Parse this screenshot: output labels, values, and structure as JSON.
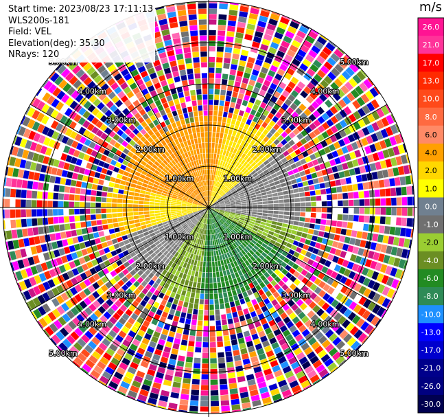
{
  "info": {
    "start_time": "Start time: 2023/08/23 17:11:13",
    "instrument": "WLS200s-181",
    "field": "Field: VEL",
    "elevation": "Elevation(deg): 35.30",
    "nrays": "NRays: 120"
  },
  "colorbar": {
    "title": "m/s",
    "ticks": [
      "26.0",
      "21.0",
      "17.0",
      "13.0",
      "10.0",
      "8.0",
      "6.0",
      "4.0",
      "2.0",
      "1.0",
      "0.0",
      "-1.0",
      "-2.0",
      "-4.0",
      "-6.0",
      "-8.0",
      "-10.0",
      "-13.0",
      "-17.0",
      "-21.0",
      "-26.0",
      "-30.0"
    ],
    "colors": [
      "#ff1493",
      "#ff3399",
      "#ff0000",
      "#ff2a00",
      "#ff4a1a",
      "#ff6a40",
      "#ff8a66",
      "#ffa000",
      "#ffd700",
      "#ffff00",
      "#708090",
      "#707070",
      "#9acd32",
      "#6b8e23",
      "#228b22",
      "#2e8b57",
      "#1e90ff",
      "#0000ff",
      "#0000cd",
      "#00008b",
      "#000080",
      "#000050"
    ]
  },
  "chart_data": {
    "type": "ppi",
    "field": "VEL",
    "units": "m/s",
    "nrays": 120,
    "range_ring_labels": [
      "1.00km",
      "2.00km",
      "3.00km",
      "4.00km",
      "5.00km"
    ],
    "range_rings_km": [
      1,
      2,
      3,
      4,
      5
    ],
    "max_range_km": 5,
    "spokes_deg": [
      0,
      30,
      60,
      90,
      120,
      150,
      180,
      210,
      240,
      270,
      300,
      330
    ],
    "pattern": {
      "inner_clean_range_km": 2.3,
      "positive_sector": "north-west (yellow/orange, +2 to +6 m/s)",
      "negative_sector": "south-east (green, -2 to -8 m/s)",
      "near_zero": "west and east diagonals (grey, 0 to -1 m/s)",
      "outer_noise": "random values beyond about 2.3 km"
    }
  }
}
